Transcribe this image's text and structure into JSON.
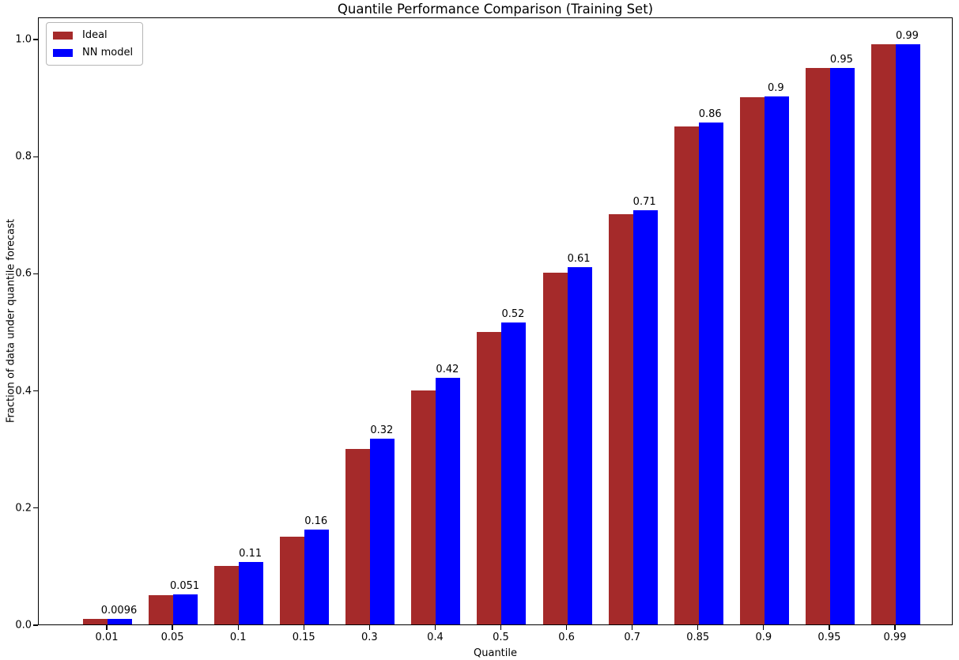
{
  "chart_data": {
    "type": "bar",
    "title": "Quantile Performance Comparison (Training Set)",
    "xlabel": "Quantile",
    "ylabel": "Fraction of data under quantile forecast",
    "categories": [
      "0.01",
      "0.05",
      "0.1",
      "0.15",
      "0.3",
      "0.4",
      "0.5",
      "0.6",
      "0.7",
      "0.85",
      "0.9",
      "0.95",
      "0.99"
    ],
    "series": [
      {
        "name": "Ideal",
        "color": "#a52a2a",
        "values": [
          0.01,
          0.05,
          0.1,
          0.15,
          0.3,
          0.4,
          0.5,
          0.6,
          0.7,
          0.85,
          0.9,
          0.95,
          0.99
        ]
      },
      {
        "name": "NN model",
        "color": "#0000ff",
        "values": [
          0.0096,
          0.051,
          0.107,
          0.162,
          0.317,
          0.421,
          0.515,
          0.61,
          0.707,
          0.857,
          0.902,
          0.95,
          0.99
        ],
        "bar_labels": [
          "0.0096",
          "0.051",
          "0.11",
          "0.16",
          "0.32",
          "0.42",
          "0.52",
          "0.61",
          "0.71",
          "0.86",
          "0.9",
          "0.95",
          "0.99"
        ]
      }
    ],
    "ytick_labels": [
      "0.0",
      "0.2",
      "0.4",
      "0.6",
      "0.8",
      "1.0"
    ],
    "ytick_values": [
      0.0,
      0.2,
      0.4,
      0.6,
      0.8,
      1.0
    ],
    "ylim": [
      0,
      1.038
    ],
    "legend_position": "upper left",
    "grid": false,
    "background_color": "#ffffff",
    "spine_color": "#000000"
  }
}
